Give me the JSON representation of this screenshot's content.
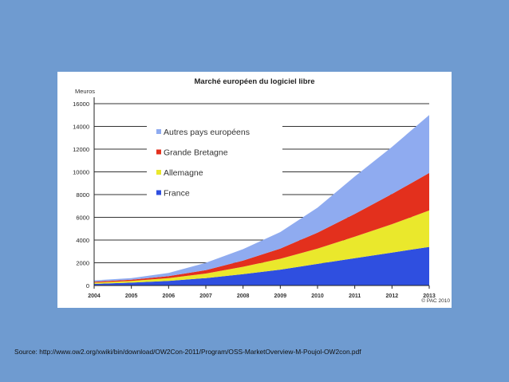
{
  "chart_data": {
    "type": "area",
    "stacked": true,
    "title": "Marché européen du logiciel libre",
    "ylabel": "Meuros",
    "xlabel": "",
    "x": [
      "2004",
      "2005",
      "2006",
      "2007",
      "2008",
      "2009",
      "2010",
      "2011",
      "2012",
      "2013"
    ],
    "x_tick_labels": [
      "2004",
      "2005",
      "2006",
      "2007",
      "2008",
      "2009",
      "2010",
      "2011",
      "2012",
      "2013"
    ],
    "ylim": [
      0,
      16000
    ],
    "y_ticks": [
      0,
      2000,
      4000,
      6000,
      8000,
      10000,
      12000,
      14000,
      16000
    ],
    "grid": true,
    "legend_position": "top-left",
    "series": [
      {
        "name": "France",
        "color": "#2f4fe0",
        "values": [
          150,
          250,
          400,
          650,
          1000,
          1400,
          1900,
          2400,
          2900,
          3400
        ]
      },
      {
        "name": "Allemagne",
        "color": "#eae82c",
        "values": [
          100,
          150,
          250,
          400,
          650,
          950,
          1350,
          1900,
          2500,
          3200
        ]
      },
      {
        "name": "Grande Bretagne",
        "color": "#e3301d",
        "values": [
          80,
          110,
          180,
          300,
          550,
          900,
          1400,
          2000,
          2650,
          3300
        ]
      },
      {
        "name": "Autres pays européens",
        "color": "#8fabf0",
        "values": [
          120,
          140,
          270,
          650,
          1000,
          1450,
          2200,
          3300,
          4150,
          5100
        ]
      }
    ],
    "legend_order": [
      "Autres pays européens",
      "Grande Bretagne",
      "Allemagne",
      "France"
    ],
    "annotation": "© PAC 2010"
  },
  "source": "Source: http://www.ow2.org/xwiki/bin/download/OW2Con-2011/Program/OSS-MarketOverview-M-Poujol-OW2con.pdf"
}
